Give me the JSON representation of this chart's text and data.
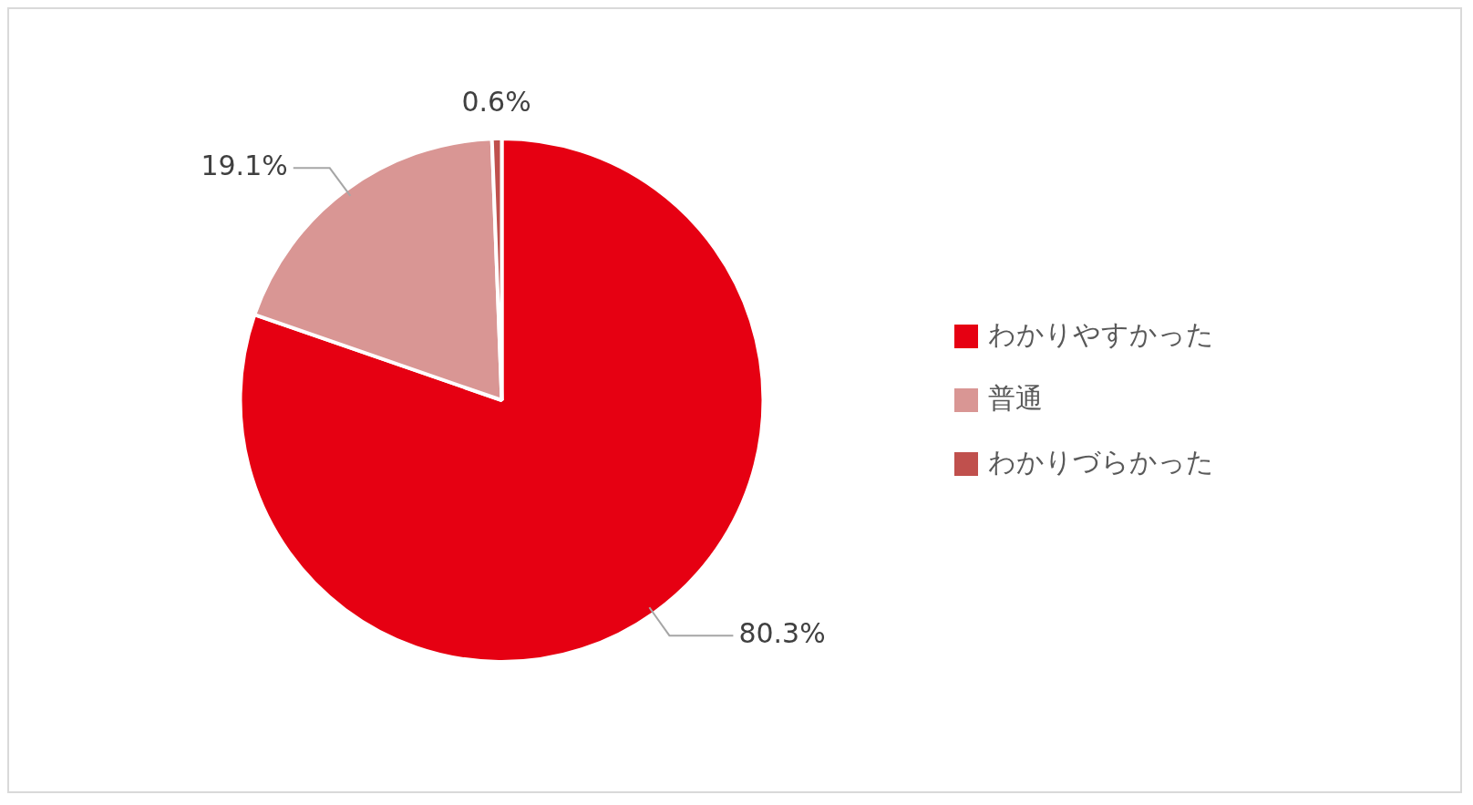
{
  "chart_data": {
    "type": "pie",
    "categories": [
      "わかりやすかった",
      "普通",
      "わかりづらかった"
    ],
    "values": [
      80.3,
      19.1,
      0.6
    ],
    "colors": [
      "#e60012",
      "#d99694",
      "#c0504d"
    ],
    "value_labels": [
      "80.3%",
      "19.1%",
      "0.6%"
    ],
    "legend": "right"
  }
}
